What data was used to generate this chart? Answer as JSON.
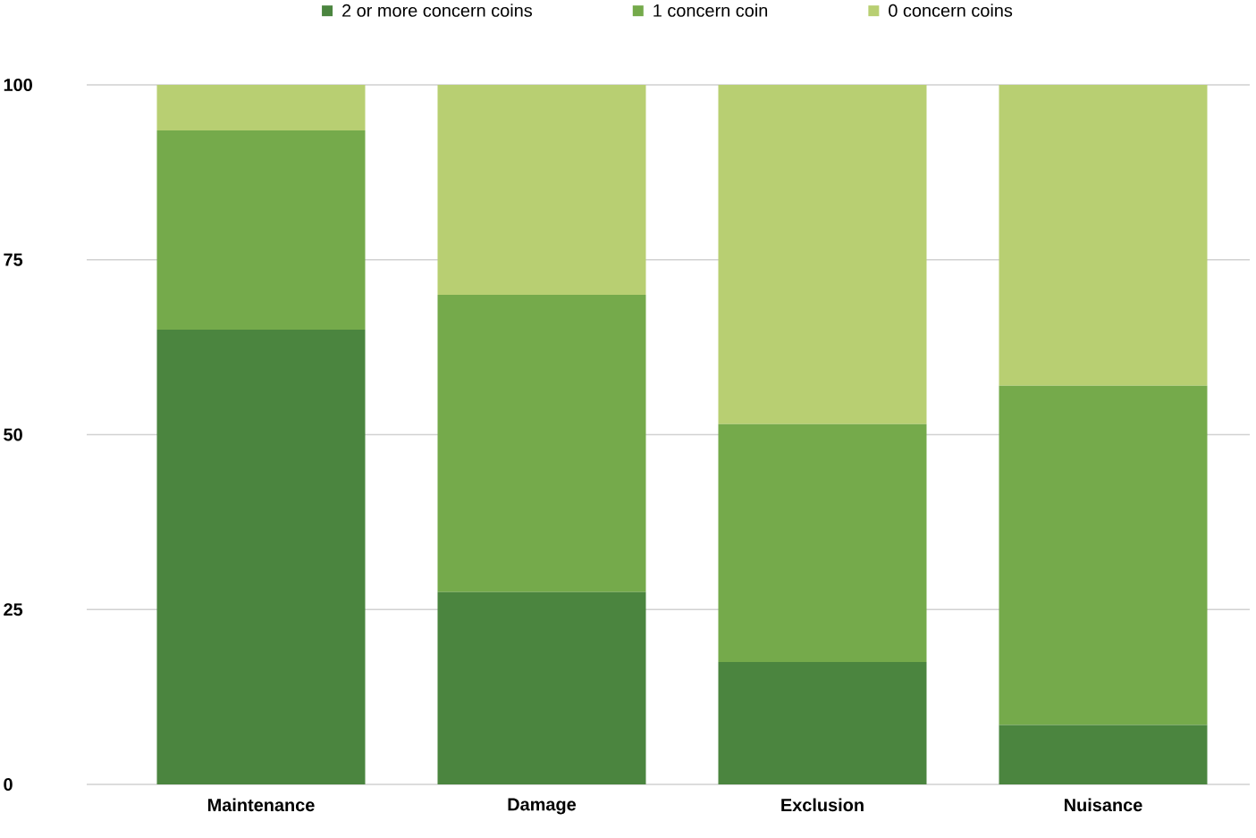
{
  "chart_data": {
    "type": "bar",
    "stacked": true,
    "categories": [
      "Maintenance",
      "Damage",
      "Exclusion",
      "Nuisance"
    ],
    "series": [
      {
        "name": "2 or more concern coins",
        "color": "#4b853f",
        "values": [
          65,
          27.5,
          17.5,
          8.5
        ]
      },
      {
        "name": "1 concern coin",
        "color": "#75aa4b",
        "values": [
          28.5,
          42.5,
          34,
          48.5
        ]
      },
      {
        "name": "0 concern coins",
        "color": "#b8cf72",
        "values": [
          6.5,
          30,
          48.5,
          43
        ]
      }
    ],
    "ylim": [
      0,
      100
    ],
    "yticks": [
      0,
      25,
      50,
      75,
      100
    ],
    "grid": "y",
    "legend": "top"
  }
}
